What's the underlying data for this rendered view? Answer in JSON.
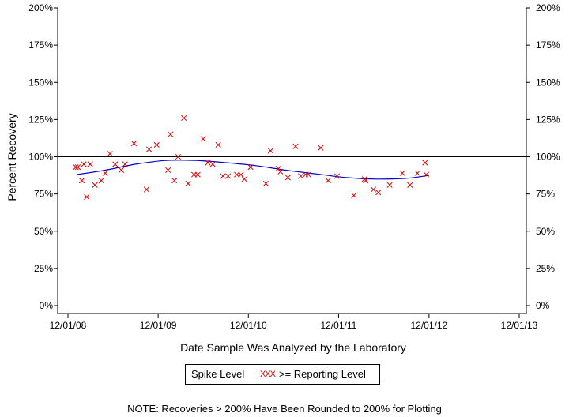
{
  "chart_data": {
    "type": "scatter",
    "ylabel": "Percent Recovery",
    "xlabel": "Date Sample Was Analyzed by the Laboratory",
    "ylim": [
      0,
      200
    ],
    "xlim": [
      "2008-12-01",
      "2013-12-01"
    ],
    "y_ticks": [
      "0%",
      "25%",
      "50%",
      "75%",
      "100%",
      "125%",
      "150%",
      "175%",
      "200%"
    ],
    "y_tick_values": [
      0,
      25,
      50,
      75,
      100,
      125,
      150,
      175,
      200
    ],
    "x_ticks": [
      "12/01/08",
      "12/01/09",
      "12/01/10",
      "12/01/11",
      "12/01/12",
      "12/01/13"
    ],
    "x_tick_values": [
      "2008-12-01",
      "2009-12-01",
      "2010-12-01",
      "2011-12-01",
      "2012-12-01",
      "2013-12-01"
    ],
    "reference_line": 100,
    "grid": false,
    "legend_position": "bottom-center",
    "legend": {
      "line_label": "Spike Level",
      "marker_glyphs": "XXX",
      "marker_label": ">= Reporting Level"
    },
    "colors": {
      "points": "#e00000",
      "trend": "#0000cc",
      "axes": "#000000"
    },
    "series": [
      {
        "name": ">= Reporting Level",
        "marker": "x",
        "x": [
          "2009-01-02",
          "2009-01-10",
          "2009-01-26",
          "2009-02-03",
          "2009-02-15",
          "2009-03-01",
          "2009-03-20",
          "2009-04-15",
          "2009-05-01",
          "2009-05-20",
          "2009-06-10",
          "2009-07-05",
          "2009-07-20",
          "2009-08-25",
          "2009-10-15",
          "2009-10-25",
          "2009-11-25",
          "2010-01-10",
          "2010-01-20",
          "2010-02-05",
          "2010-02-20",
          "2010-03-15",
          "2010-04-01",
          "2010-04-25",
          "2010-05-10",
          "2010-06-01",
          "2010-06-20",
          "2010-07-10",
          "2010-08-01",
          "2010-08-20",
          "2010-09-10",
          "2010-10-15",
          "2010-11-01",
          "2010-11-15",
          "2010-12-10",
          "2011-02-10",
          "2011-03-01",
          "2011-04-01",
          "2011-04-10",
          "2011-05-10",
          "2011-06-10",
          "2011-07-01",
          "2011-07-20",
          "2011-08-01",
          "2011-09-20",
          "2011-10-20",
          "2011-11-25",
          "2012-02-01",
          "2012-03-15",
          "2012-03-20",
          "2012-04-20",
          "2012-05-10",
          "2012-06-25",
          "2012-08-15",
          "2012-09-15",
          "2012-10-15",
          "2012-11-15",
          "2012-11-20"
        ],
        "y": [
          93,
          93,
          84,
          95,
          73,
          95,
          81,
          84,
          89,
          102,
          95,
          91,
          95,
          109,
          78,
          105,
          108,
          91,
          115,
          84,
          100,
          126,
          82,
          88,
          88,
          112,
          96,
          95,
          108,
          87,
          87,
          88,
          88,
          85,
          93,
          82,
          104,
          92,
          90,
          86,
          107,
          87,
          88,
          88,
          106,
          84,
          87,
          74,
          85,
          84,
          78,
          76,
          81,
          89,
          81,
          89,
          96,
          88
        ]
      },
      {
        "name": "Spike Level",
        "marker": "line",
        "x": [
          "2009-01-05",
          "2009-05-01",
          "2009-09-01",
          "2010-01-01",
          "2010-05-01",
          "2010-09-01",
          "2011-01-01",
          "2011-05-01",
          "2011-09-01",
          "2012-01-01",
          "2012-05-01",
          "2012-09-01",
          "2012-12-01"
        ],
        "y": [
          88,
          91,
          95,
          97.5,
          97.5,
          96,
          94,
          91,
          88.5,
          86,
          85,
          85.5,
          87.5
        ]
      }
    ]
  },
  "footer": {
    "note": "NOTE: Recoveries > 200% Have Been Rounded to 200% for Plotting"
  }
}
